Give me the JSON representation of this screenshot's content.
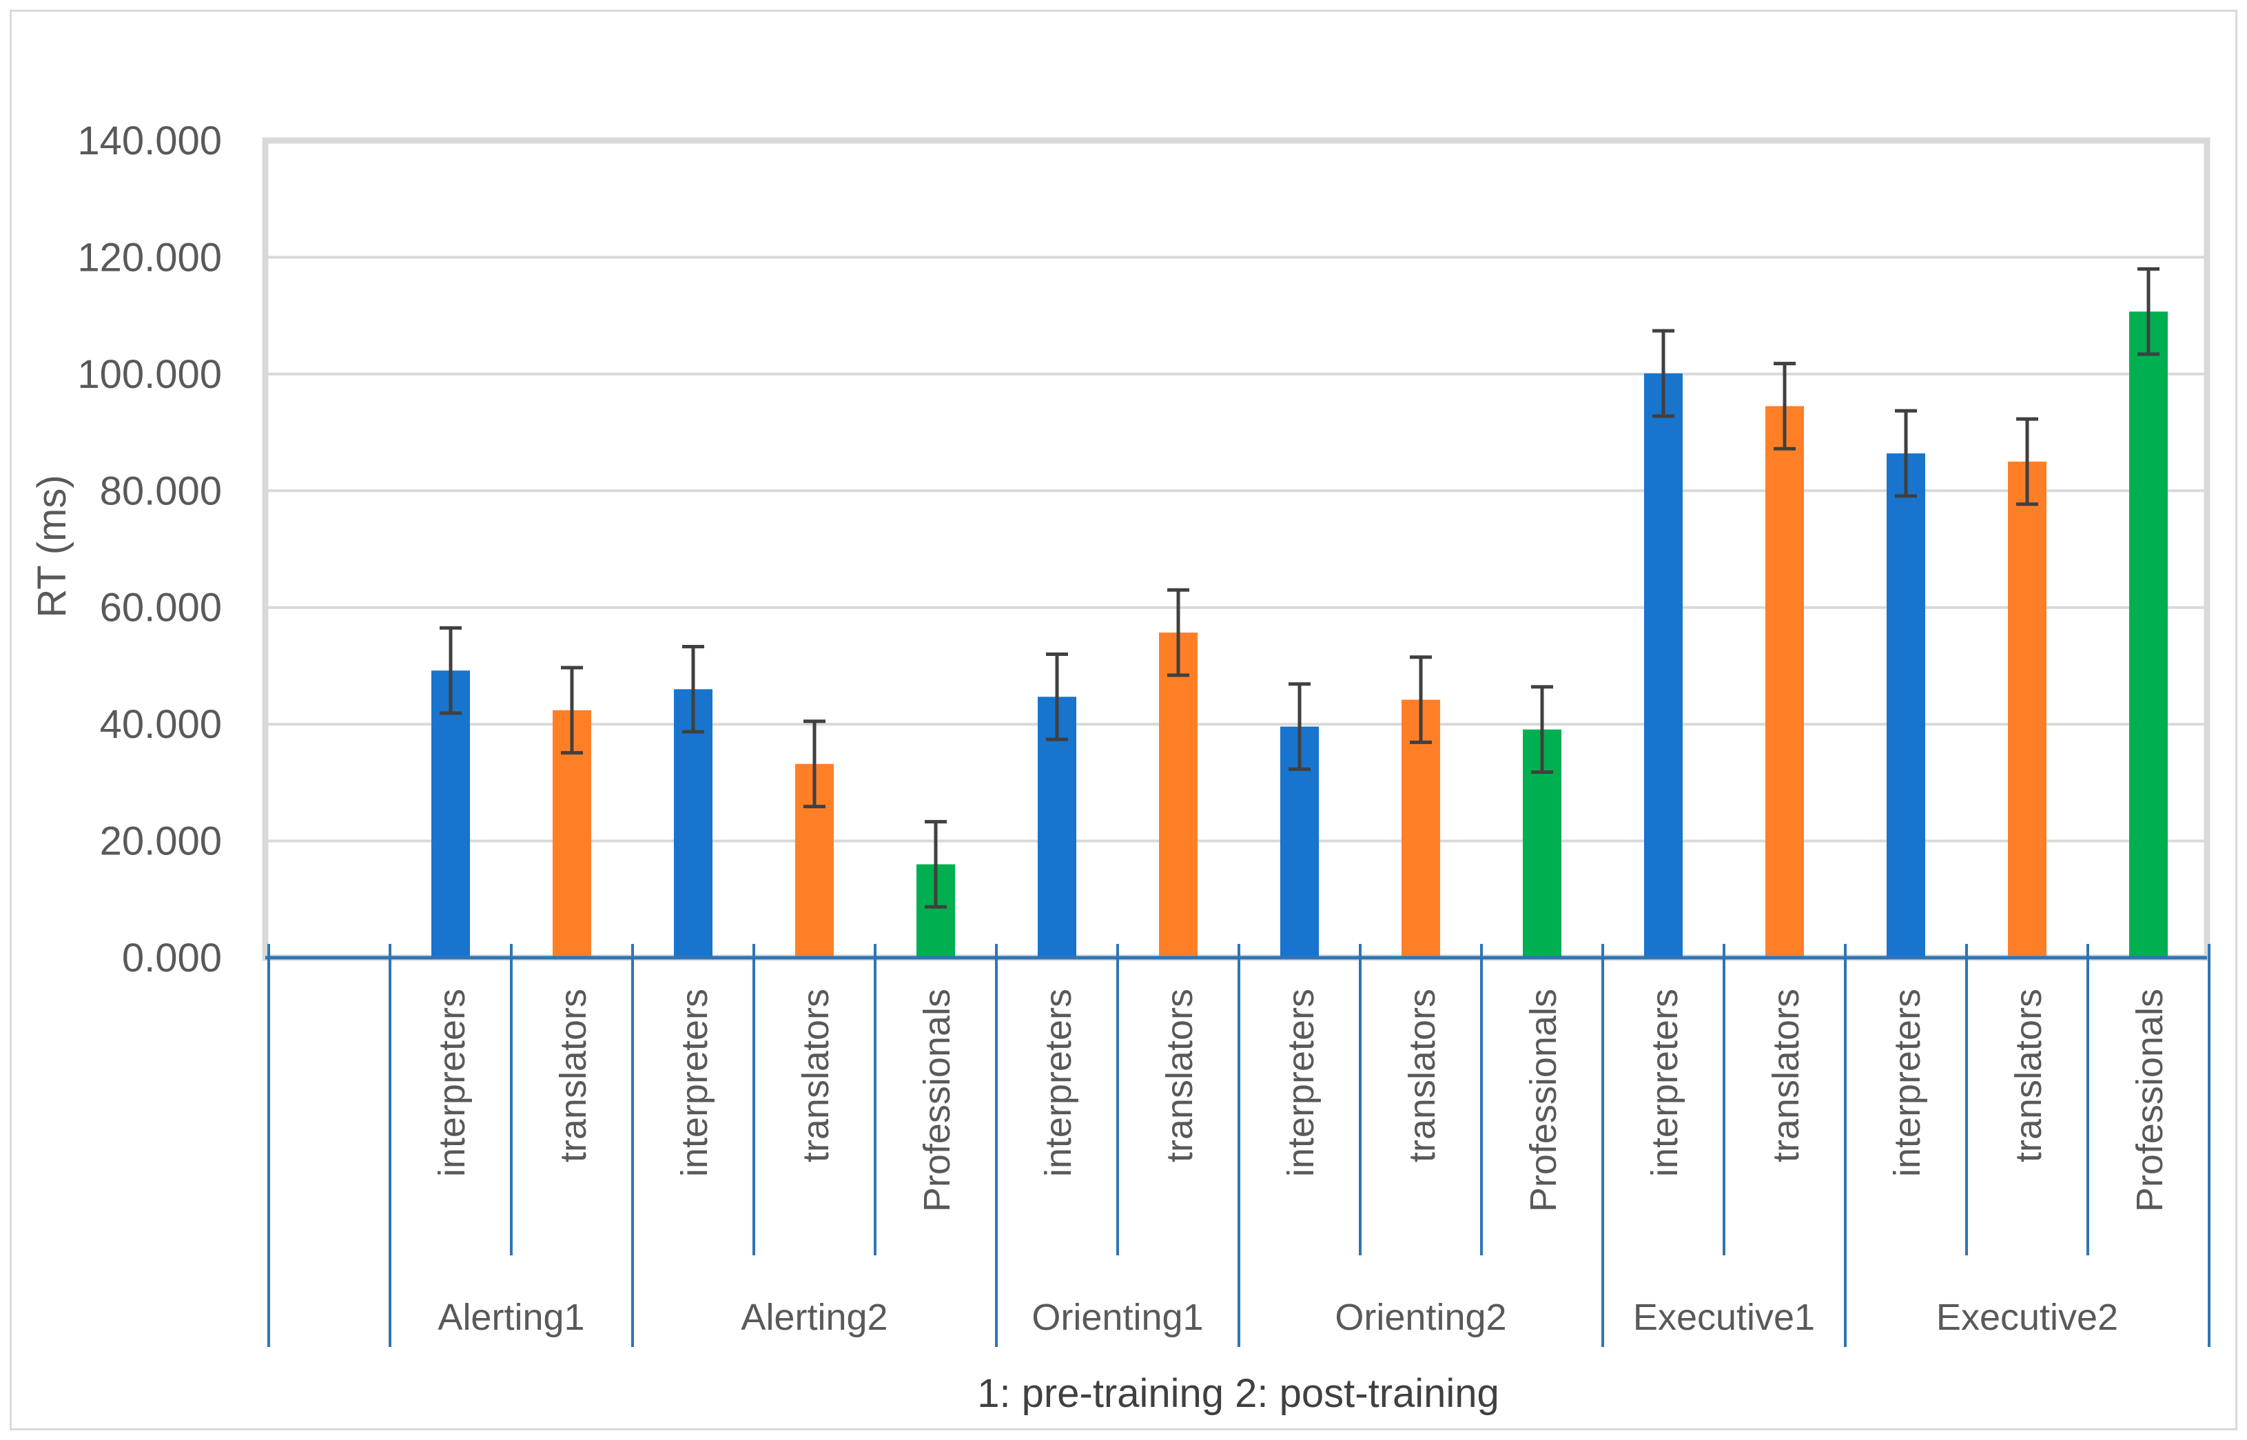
{
  "chart_data": {
    "type": "bar",
    "ylabel": "RT (ms)",
    "xlabel": "1: pre-training  2: post-training",
    "ylim": [
      0,
      140
    ],
    "yticks": [
      "0.000",
      "20.000",
      "40.000",
      "60.000",
      "80.000",
      "100.000",
      "120.000",
      "140.000"
    ],
    "grid": true,
    "colors": {
      "interpreters": "#1874cd",
      "translators": "#ff7f27",
      "Professionals": "#00b050",
      "axis": "#2e75b6",
      "grid": "#d9d9d9",
      "error": "#404040"
    },
    "groups": [
      {
        "label": "Alerting1",
        "bars": [
          {
            "category": "interpreters",
            "value": 49.2,
            "error": 7.3
          },
          {
            "category": "translators",
            "value": 42.4,
            "error": 7.3
          }
        ]
      },
      {
        "label": "Alerting2",
        "bars": [
          {
            "category": "interpreters",
            "value": 46.0,
            "error": 7.3
          },
          {
            "category": "translators",
            "value": 33.2,
            "error": 7.3
          },
          {
            "category": "Professionals",
            "value": 16.0,
            "error": 7.3
          }
        ]
      },
      {
        "label": "Orienting1",
        "bars": [
          {
            "category": "interpreters",
            "value": 44.7,
            "error": 7.3
          },
          {
            "category": "translators",
            "value": 55.7,
            "error": 7.3
          }
        ]
      },
      {
        "label": "Orienting2",
        "bars": [
          {
            "category": "interpreters",
            "value": 39.6,
            "error": 7.3
          },
          {
            "category": "translators",
            "value": 44.2,
            "error": 7.3
          },
          {
            "category": "Professionals",
            "value": 39.1,
            "error": 7.3
          }
        ]
      },
      {
        "label": "Executive1",
        "bars": [
          {
            "category": "interpreters",
            "value": 100.1,
            "error": 7.3
          },
          {
            "category": "translators",
            "value": 94.5,
            "error": 7.3
          }
        ]
      },
      {
        "label": "Executive2",
        "bars": [
          {
            "category": "interpreters",
            "value": 86.4,
            "error": 7.3
          },
          {
            "category": "translators",
            "value": 85.0,
            "error": 7.3
          },
          {
            "category": "Professionals",
            "value": 110.7,
            "error": 7.3
          }
        ]
      }
    ]
  }
}
